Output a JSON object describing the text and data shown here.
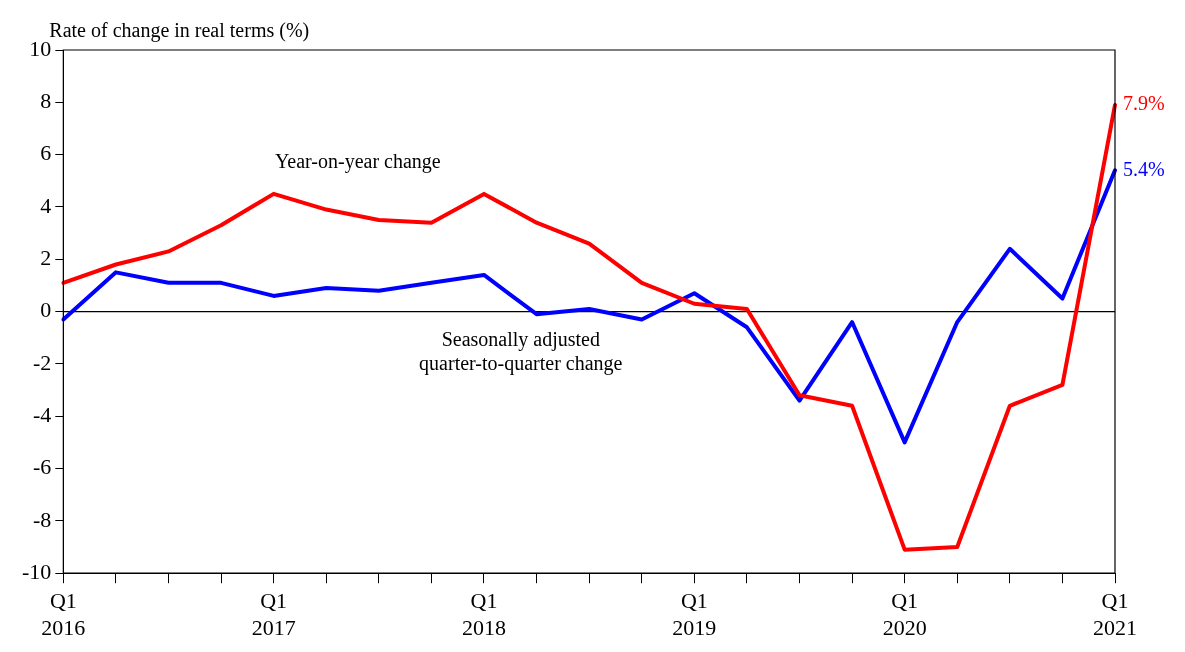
{
  "chart_data": {
    "type": "line",
    "ylabel": "Rate of change in real terms (%)",
    "categories": [
      "Q1\n2016",
      null,
      null,
      null,
      "Q1\n2017",
      null,
      null,
      null,
      "Q1\n2018",
      null,
      null,
      null,
      "Q1\n2019",
      null,
      null,
      null,
      "Q1\n2020",
      null,
      null,
      null,
      "Q1\n2021"
    ],
    "series": [
      {
        "name": "Year-on-year change",
        "color": "#ff0000",
        "values": [
          1.1,
          1.8,
          2.3,
          3.3,
          4.5,
          3.9,
          3.5,
          3.4,
          4.5,
          3.4,
          2.6,
          1.1,
          0.3,
          0.1,
          -3.2,
          -3.6,
          -9.1,
          -9.0,
          -3.6,
          -2.8,
          7.9
        ],
        "value_labels": [
          null,
          null,
          null,
          null,
          null,
          null,
          null,
          null,
          null,
          null,
          null,
          null,
          null,
          null,
          null,
          null,
          null,
          null,
          null,
          null,
          "7.9%"
        ]
      },
      {
        "name": "Seasonally adjusted quarter-to-quarter change",
        "color": "#0000ff",
        "values": [
          -0.3,
          1.5,
          1.1,
          1.1,
          0.6,
          0.9,
          0.8,
          1.1,
          1.4,
          -0.1,
          0.1,
          -0.3,
          0.7,
          -0.6,
          -3.4,
          -0.4,
          -5.0,
          -0.4,
          2.4,
          0.5,
          5.4
        ],
        "value_labels": [
          null,
          null,
          null,
          null,
          null,
          null,
          null,
          null,
          null,
          null,
          null,
          null,
          null,
          null,
          null,
          null,
          null,
          null,
          null,
          null,
          "5.4%"
        ]
      }
    ],
    "ylim": [
      -10,
      10
    ],
    "yticks": [
      -10,
      -8,
      -6,
      -4,
      -2,
      0,
      2,
      4,
      6,
      8,
      10
    ],
    "ref_lines": [
      {
        "axis": "y",
        "value": 0,
        "color": "#000000"
      }
    ],
    "grid": false,
    "legend": false,
    "marker": "none",
    "line_style": "solid"
  }
}
